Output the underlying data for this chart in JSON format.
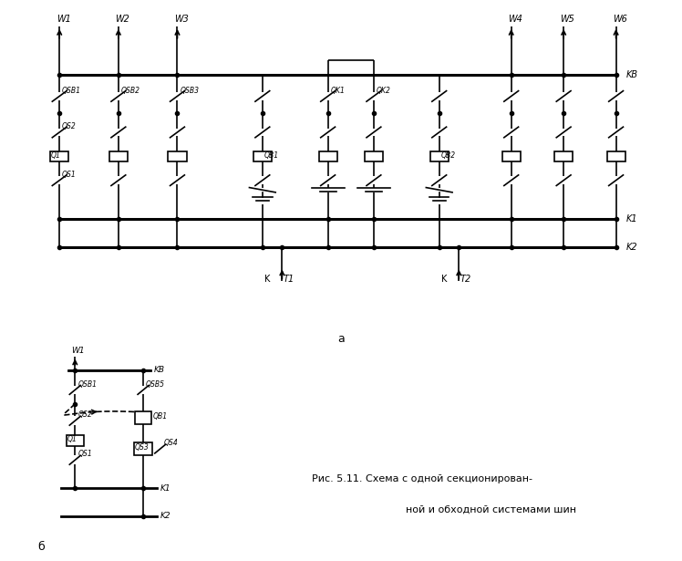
{
  "bg_color": "#ffffff",
  "line_color": "#000000",
  "fig_width": 7.48,
  "fig_height": 6.15,
  "dpi": 100,
  "caption_line1": "Рис. 5.11. Схема с одной секционирован-",
  "caption_line2": "ной и обходной системами шин",
  "label_a": "а",
  "label_b": "б"
}
